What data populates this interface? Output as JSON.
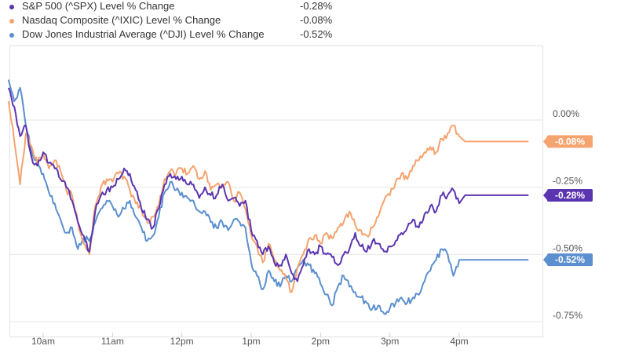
{
  "legend": [
    {
      "name": "S&P 500 (^SPX) Level % Change",
      "value": "-0.28%",
      "color": "#5b35b0"
    },
    {
      "name": "Nasdaq Composite (^IXIC) Level % Change",
      "value": "-0.08%",
      "color": "#f5a36f"
    },
    {
      "name": "Dow Jones Industrial Average (^DJI) Level % Change",
      "value": "-0.52%",
      "color": "#5b8fcf"
    }
  ],
  "chart_data": {
    "type": "line",
    "xlabel": "",
    "ylabel": "",
    "x_ticks": [
      "10am",
      "11am",
      "12pm",
      "1pm",
      "2pm",
      "3pm",
      "4pm"
    ],
    "y_ticks": [
      {
        "value": 0.0,
        "label": "0.00%"
      },
      {
        "value": -0.25,
        "label": "-0.25%"
      },
      {
        "value": -0.5,
        "label": "-0.50%"
      },
      {
        "value": -0.75,
        "label": "-0.75%"
      }
    ],
    "xlim": [
      "09:30",
      "17:00"
    ],
    "ylim": [
      -0.8,
      0.25
    ],
    "grid": "horizontal",
    "legend_position": "top-left",
    "series": [
      {
        "name": "S&P 500 (^SPX) Level % Change",
        "color": "#5b35b0",
        "end_label": "-0.28%",
        "points": [
          [
            "09:30",
            0.12
          ],
          [
            "09:35",
            0.05
          ],
          [
            "09:40",
            -0.06
          ],
          [
            "09:45",
            -0.02
          ],
          [
            "09:50",
            -0.14
          ],
          [
            "09:55",
            -0.17
          ],
          [
            "10:00",
            -0.12
          ],
          [
            "10:05",
            -0.16
          ],
          [
            "10:10",
            -0.18
          ],
          [
            "10:15",
            -0.22
          ],
          [
            "10:20",
            -0.25
          ],
          [
            "10:25",
            -0.3
          ],
          [
            "10:30",
            -0.38
          ],
          [
            "10:35",
            -0.43
          ],
          [
            "10:40",
            -0.49
          ],
          [
            "10:45",
            -0.34
          ],
          [
            "10:50",
            -0.28
          ],
          [
            "10:55",
            -0.26
          ],
          [
            "11:00",
            -0.25
          ],
          [
            "11:05",
            -0.22
          ],
          [
            "11:10",
            -0.18
          ],
          [
            "11:15",
            -0.2
          ],
          [
            "11:20",
            -0.26
          ],
          [
            "11:25",
            -0.33
          ],
          [
            "11:30",
            -0.37
          ],
          [
            "11:35",
            -0.4
          ],
          [
            "11:40",
            -0.33
          ],
          [
            "11:45",
            -0.24
          ],
          [
            "11:50",
            -0.2
          ],
          [
            "11:55",
            -0.22
          ],
          [
            "12:00",
            -0.21
          ],
          [
            "12:05",
            -0.24
          ],
          [
            "12:10",
            -0.24
          ],
          [
            "12:15",
            -0.29
          ],
          [
            "12:20",
            -0.25
          ],
          [
            "12:25",
            -0.28
          ],
          [
            "12:30",
            -0.28
          ],
          [
            "12:35",
            -0.24
          ],
          [
            "12:40",
            -0.3
          ],
          [
            "12:45",
            -0.29
          ],
          [
            "12:50",
            -0.32
          ],
          [
            "12:55",
            -0.3
          ],
          [
            "13:00",
            -0.41
          ],
          [
            "13:05",
            -0.45
          ],
          [
            "13:10",
            -0.5
          ],
          [
            "13:15",
            -0.47
          ],
          [
            "13:20",
            -0.53
          ],
          [
            "13:25",
            -0.54
          ],
          [
            "13:30",
            -0.5
          ],
          [
            "13:35",
            -0.57
          ],
          [
            "13:40",
            -0.6
          ],
          [
            "13:45",
            -0.54
          ],
          [
            "13:50",
            -0.48
          ],
          [
            "13:55",
            -0.5
          ],
          [
            "14:00",
            -0.47
          ],
          [
            "14:05",
            -0.5
          ],
          [
            "14:10",
            -0.51
          ],
          [
            "14:15",
            -0.54
          ],
          [
            "14:20",
            -0.5
          ],
          [
            "14:25",
            -0.48
          ],
          [
            "14:30",
            -0.42
          ],
          [
            "14:35",
            -0.47
          ],
          [
            "14:40",
            -0.49
          ],
          [
            "14:45",
            -0.45
          ],
          [
            "14:50",
            -0.46
          ],
          [
            "14:55",
            -0.49
          ],
          [
            "15:00",
            -0.47
          ],
          [
            "15:05",
            -0.45
          ],
          [
            "15:10",
            -0.42
          ],
          [
            "15:15",
            -0.4
          ],
          [
            "15:20",
            -0.37
          ],
          [
            "15:25",
            -0.4
          ],
          [
            "15:30",
            -0.35
          ],
          [
            "15:35",
            -0.32
          ],
          [
            "15:40",
            -0.34
          ],
          [
            "15:45",
            -0.28
          ],
          [
            "15:50",
            -0.28
          ],
          [
            "15:55",
            -0.26
          ],
          [
            "16:00",
            -0.31
          ],
          [
            "16:05",
            -0.28
          ],
          [
            "17:00",
            -0.28
          ]
        ]
      },
      {
        "name": "Nasdaq Composite (^IXIC) Level % Change",
        "color": "#f5a36f",
        "end_label": "-0.08%",
        "points": [
          [
            "09:30",
            0.07
          ],
          [
            "09:35",
            -0.08
          ],
          [
            "09:40",
            -0.24
          ],
          [
            "09:45",
            -0.05
          ],
          [
            "09:50",
            -0.1
          ],
          [
            "09:55",
            -0.16
          ],
          [
            "10:00",
            -0.12
          ],
          [
            "10:05",
            -0.18
          ],
          [
            "10:10",
            -0.15
          ],
          [
            "10:15",
            -0.19
          ],
          [
            "10:20",
            -0.26
          ],
          [
            "10:25",
            -0.28
          ],
          [
            "10:30",
            -0.38
          ],
          [
            "10:35",
            -0.46
          ],
          [
            "10:40",
            -0.5
          ],
          [
            "10:45",
            -0.32
          ],
          [
            "10:50",
            -0.25
          ],
          [
            "10:55",
            -0.22
          ],
          [
            "11:00",
            -0.23
          ],
          [
            "11:05",
            -0.2
          ],
          [
            "11:10",
            -0.21
          ],
          [
            "11:15",
            -0.26
          ],
          [
            "11:20",
            -0.31
          ],
          [
            "11:25",
            -0.33
          ],
          [
            "11:30",
            -0.38
          ],
          [
            "11:35",
            -0.36
          ],
          [
            "11:40",
            -0.32
          ],
          [
            "11:45",
            -0.22
          ],
          [
            "11:50",
            -0.19
          ],
          [
            "11:55",
            -0.2
          ],
          [
            "12:00",
            -0.18
          ],
          [
            "12:05",
            -0.2
          ],
          [
            "12:10",
            -0.17
          ],
          [
            "12:15",
            -0.22
          ],
          [
            "12:20",
            -0.19
          ],
          [
            "12:25",
            -0.26
          ],
          [
            "12:30",
            -0.24
          ],
          [
            "12:35",
            -0.25
          ],
          [
            "12:40",
            -0.23
          ],
          [
            "12:45",
            -0.3
          ],
          [
            "12:50",
            -0.27
          ],
          [
            "12:55",
            -0.33
          ],
          [
            "13:00",
            -0.43
          ],
          [
            "13:05",
            -0.47
          ],
          [
            "13:10",
            -0.53
          ],
          [
            "13:15",
            -0.46
          ],
          [
            "13:20",
            -0.52
          ],
          [
            "13:25",
            -0.56
          ],
          [
            "13:30",
            -0.59
          ],
          [
            "13:35",
            -0.64
          ],
          [
            "13:40",
            -0.55
          ],
          [
            "13:45",
            -0.5
          ],
          [
            "13:50",
            -0.44
          ],
          [
            "13:55",
            -0.43
          ],
          [
            "14:00",
            -0.46
          ],
          [
            "14:05",
            -0.42
          ],
          [
            "14:10",
            -0.44
          ],
          [
            "14:15",
            -0.4
          ],
          [
            "14:20",
            -0.38
          ],
          [
            "14:25",
            -0.34
          ],
          [
            "14:30",
            -0.39
          ],
          [
            "14:35",
            -0.41
          ],
          [
            "14:40",
            -0.43
          ],
          [
            "14:45",
            -0.4
          ],
          [
            "14:50",
            -0.36
          ],
          [
            "14:55",
            -0.3
          ],
          [
            "15:00",
            -0.28
          ],
          [
            "15:05",
            -0.23
          ],
          [
            "15:10",
            -0.2
          ],
          [
            "15:15",
            -0.22
          ],
          [
            "15:20",
            -0.17
          ],
          [
            "15:25",
            -0.15
          ],
          [
            "15:30",
            -0.12
          ],
          [
            "15:35",
            -0.1
          ],
          [
            "15:40",
            -0.12
          ],
          [
            "15:45",
            -0.07
          ],
          [
            "15:50",
            -0.05
          ],
          [
            "15:55",
            -0.02
          ],
          [
            "16:00",
            -0.06
          ],
          [
            "16:05",
            -0.08
          ],
          [
            "17:00",
            -0.08
          ]
        ]
      },
      {
        "name": "Dow Jones Industrial Average (^DJI) Level % Change",
        "color": "#5b8fcf",
        "end_label": "-0.52%",
        "points": [
          [
            "09:30",
            0.15
          ],
          [
            "09:35",
            0.07
          ],
          [
            "09:40",
            0.12
          ],
          [
            "09:45",
            -0.02
          ],
          [
            "09:50",
            -0.12
          ],
          [
            "09:55",
            -0.16
          ],
          [
            "10:00",
            -0.2
          ],
          [
            "10:05",
            -0.27
          ],
          [
            "10:10",
            -0.31
          ],
          [
            "10:15",
            -0.37
          ],
          [
            "10:20",
            -0.42
          ],
          [
            "10:25",
            -0.4
          ],
          [
            "10:30",
            -0.48
          ],
          [
            "10:35",
            -0.44
          ],
          [
            "10:40",
            -0.45
          ],
          [
            "10:45",
            -0.38
          ],
          [
            "10:50",
            -0.33
          ],
          [
            "10:55",
            -0.3
          ],
          [
            "11:00",
            -0.32
          ],
          [
            "11:05",
            -0.36
          ],
          [
            "11:10",
            -0.33
          ],
          [
            "11:15",
            -0.3
          ],
          [
            "11:20",
            -0.36
          ],
          [
            "11:25",
            -0.4
          ],
          [
            "11:30",
            -0.45
          ],
          [
            "11:35",
            -0.43
          ],
          [
            "11:40",
            -0.36
          ],
          [
            "11:45",
            -0.27
          ],
          [
            "11:50",
            -0.23
          ],
          [
            "11:55",
            -0.26
          ],
          [
            "12:00",
            -0.27
          ],
          [
            "12:05",
            -0.29
          ],
          [
            "12:10",
            -0.3
          ],
          [
            "12:15",
            -0.34
          ],
          [
            "12:20",
            -0.34
          ],
          [
            "12:25",
            -0.38
          ],
          [
            "12:30",
            -0.4
          ],
          [
            "12:35",
            -0.38
          ],
          [
            "12:40",
            -0.41
          ],
          [
            "12:45",
            -0.37
          ],
          [
            "12:50",
            -0.38
          ],
          [
            "12:55",
            -0.4
          ],
          [
            "13:00",
            -0.53
          ],
          [
            "13:05",
            -0.58
          ],
          [
            "13:10",
            -0.63
          ],
          [
            "13:15",
            -0.56
          ],
          [
            "13:20",
            -0.6
          ],
          [
            "13:25",
            -0.62
          ],
          [
            "13:30",
            -0.58
          ],
          [
            "13:35",
            -0.6
          ],
          [
            "13:40",
            -0.55
          ],
          [
            "13:45",
            -0.52
          ],
          [
            "13:50",
            -0.54
          ],
          [
            "13:55",
            -0.57
          ],
          [
            "14:00",
            -0.61
          ],
          [
            "14:05",
            -0.65
          ],
          [
            "14:10",
            -0.69
          ],
          [
            "14:15",
            -0.62
          ],
          [
            "14:20",
            -0.58
          ],
          [
            "14:25",
            -0.62
          ],
          [
            "14:30",
            -0.64
          ],
          [
            "14:35",
            -0.66
          ],
          [
            "14:40",
            -0.68
          ],
          [
            "14:45",
            -0.7
          ],
          [
            "14:50",
            -0.69
          ],
          [
            "14:55",
            -0.72
          ],
          [
            "15:00",
            -0.7
          ],
          [
            "15:05",
            -0.68
          ],
          [
            "15:10",
            -0.66
          ],
          [
            "15:15",
            -0.68
          ],
          [
            "15:20",
            -0.66
          ],
          [
            "15:25",
            -0.65
          ],
          [
            "15:30",
            -0.6
          ],
          [
            "15:35",
            -0.56
          ],
          [
            "15:40",
            -0.52
          ],
          [
            "15:45",
            -0.48
          ],
          [
            "15:50",
            -0.5
          ],
          [
            "15:55",
            -0.58
          ],
          [
            "16:00",
            -0.52
          ],
          [
            "16:05",
            -0.52
          ],
          [
            "17:00",
            -0.52
          ]
        ]
      }
    ]
  }
}
